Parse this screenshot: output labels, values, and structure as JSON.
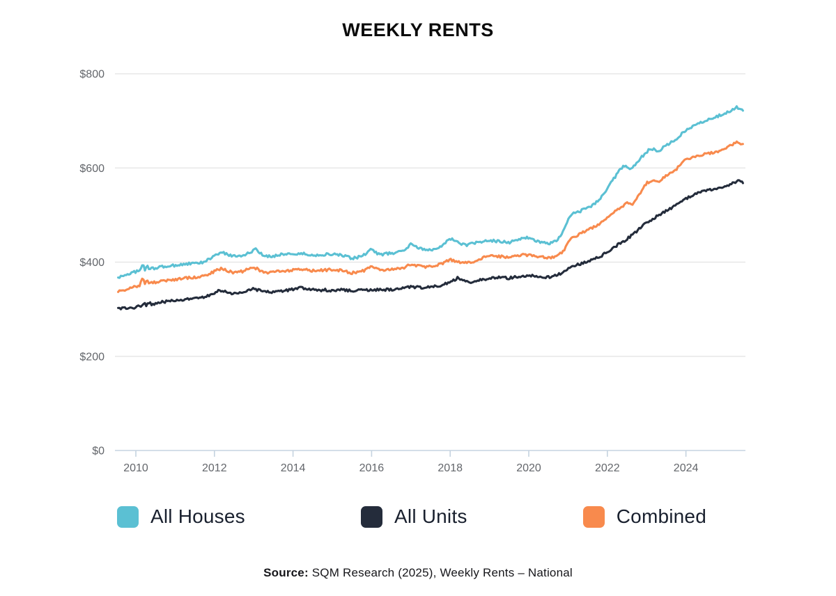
{
  "title": "WEEKLY RENTS",
  "source": {
    "label": "Source:",
    "text": " SQM Research (2025), Weekly Rents – National"
  },
  "colors": {
    "grid": "#e7e7e7",
    "axis": "#c5d3e0",
    "tick_label": "#63666b",
    "background": "#ffffff",
    "title": "#0b0b0b"
  },
  "chart_data": {
    "type": "line",
    "title": "WEEKLY RENTS",
    "xlabel": "",
    "ylabel": "",
    "grid": true,
    "legend_position": "bottom",
    "x_axis": {
      "range": [
        2009.55,
        2025.45
      ],
      "ticks": [
        {
          "value": 2010,
          "label": "2010"
        },
        {
          "value": 2012,
          "label": "2012"
        },
        {
          "value": 2014,
          "label": "2014"
        },
        {
          "value": 2016,
          "label": "2016"
        },
        {
          "value": 2018,
          "label": "2018"
        },
        {
          "value": 2020,
          "label": "2020"
        },
        {
          "value": 2022,
          "label": "2022"
        },
        {
          "value": 2024,
          "label": "2024"
        }
      ]
    },
    "y_axis": {
      "range": [
        0,
        800
      ],
      "ticks": [
        {
          "value": 0,
          "label": "$0"
        },
        {
          "value": 200,
          "label": "$200"
        },
        {
          "value": 400,
          "label": "$400"
        },
        {
          "value": 600,
          "label": "$600"
        },
        {
          "value": 800,
          "label": "$800"
        }
      ]
    },
    "series": [
      {
        "name": "All Houses",
        "color": "#5bc0d3",
        "points": [
          [
            2009.55,
            367
          ],
          [
            2009.7,
            372
          ],
          [
            2009.85,
            376
          ],
          [
            2010.0,
            380
          ],
          [
            2010.1,
            381
          ],
          [
            2010.18,
            396
          ],
          [
            2010.23,
            383
          ],
          [
            2010.28,
            394
          ],
          [
            2010.34,
            385
          ],
          [
            2010.5,
            388
          ],
          [
            2010.75,
            391
          ],
          [
            2011.0,
            393
          ],
          [
            2011.25,
            396
          ],
          [
            2011.5,
            397
          ],
          [
            2011.75,
            400
          ],
          [
            2012.0,
            414
          ],
          [
            2012.2,
            420
          ],
          [
            2012.35,
            416
          ],
          [
            2012.5,
            413
          ],
          [
            2012.75,
            415
          ],
          [
            2012.9,
            420
          ],
          [
            2013.05,
            427
          ],
          [
            2013.25,
            413
          ],
          [
            2013.45,
            412
          ],
          [
            2013.65,
            416
          ],
          [
            2013.85,
            418
          ],
          [
            2014.0,
            417
          ],
          [
            2014.25,
            418
          ],
          [
            2014.5,
            414
          ],
          [
            2014.75,
            416
          ],
          [
            2015.0,
            417
          ],
          [
            2015.25,
            414
          ],
          [
            2015.5,
            408
          ],
          [
            2015.75,
            412
          ],
          [
            2016.0,
            427
          ],
          [
            2016.2,
            416
          ],
          [
            2016.4,
            418
          ],
          [
            2016.6,
            420
          ],
          [
            2016.8,
            424
          ],
          [
            2017.0,
            438
          ],
          [
            2017.2,
            430
          ],
          [
            2017.4,
            425
          ],
          [
            2017.6,
            428
          ],
          [
            2017.8,
            436
          ],
          [
            2018.0,
            450
          ],
          [
            2018.2,
            442
          ],
          [
            2018.4,
            436
          ],
          [
            2018.6,
            440
          ],
          [
            2018.8,
            443
          ],
          [
            2019.0,
            446
          ],
          [
            2019.25,
            444
          ],
          [
            2019.5,
            442
          ],
          [
            2019.75,
            448
          ],
          [
            2019.9,
            453
          ],
          [
            2020.1,
            447
          ],
          [
            2020.3,
            443
          ],
          [
            2020.5,
            440
          ],
          [
            2020.7,
            444
          ],
          [
            2020.85,
            460
          ],
          [
            2021.0,
            490
          ],
          [
            2021.1,
            502
          ],
          [
            2021.25,
            506
          ],
          [
            2021.4,
            512
          ],
          [
            2021.55,
            517
          ],
          [
            2021.7,
            526
          ],
          [
            2021.85,
            538
          ],
          [
            2022.0,
            557
          ],
          [
            2022.15,
            575
          ],
          [
            2022.3,
            595
          ],
          [
            2022.45,
            606
          ],
          [
            2022.6,
            598
          ],
          [
            2022.75,
            612
          ],
          [
            2023.0,
            634
          ],
          [
            2023.1,
            641
          ],
          [
            2023.3,
            636
          ],
          [
            2023.5,
            648
          ],
          [
            2023.75,
            662
          ],
          [
            2024.0,
            680
          ],
          [
            2024.2,
            690
          ],
          [
            2024.4,
            697
          ],
          [
            2024.6,
            705
          ],
          [
            2024.8,
            710
          ],
          [
            2025.0,
            715
          ],
          [
            2025.15,
            722
          ],
          [
            2025.3,
            729
          ],
          [
            2025.45,
            724
          ]
        ]
      },
      {
        "name": "All Units",
        "color": "#242c3b",
        "points": [
          [
            2009.55,
            300
          ],
          [
            2009.7,
            302
          ],
          [
            2009.85,
            301
          ],
          [
            2010.0,
            305
          ],
          [
            2010.15,
            306
          ],
          [
            2010.2,
            313
          ],
          [
            2010.28,
            308
          ],
          [
            2010.33,
            314
          ],
          [
            2010.4,
            310
          ],
          [
            2010.5,
            313
          ],
          [
            2010.75,
            316
          ],
          [
            2011.0,
            318
          ],
          [
            2011.25,
            320
          ],
          [
            2011.5,
            323
          ],
          [
            2011.75,
            326
          ],
          [
            2012.0,
            335
          ],
          [
            2012.15,
            340
          ],
          [
            2012.3,
            336
          ],
          [
            2012.5,
            333
          ],
          [
            2012.75,
            336
          ],
          [
            2013.0,
            344
          ],
          [
            2013.2,
            338
          ],
          [
            2013.4,
            336
          ],
          [
            2013.6,
            338
          ],
          [
            2013.8,
            340
          ],
          [
            2014.0,
            342
          ],
          [
            2014.2,
            345
          ],
          [
            2014.4,
            342
          ],
          [
            2014.6,
            340
          ],
          [
            2014.8,
            341
          ],
          [
            2015.0,
            340
          ],
          [
            2015.25,
            342
          ],
          [
            2015.5,
            339
          ],
          [
            2015.75,
            341
          ],
          [
            2016.0,
            340
          ],
          [
            2016.25,
            342
          ],
          [
            2016.5,
            341
          ],
          [
            2016.75,
            344
          ],
          [
            2017.0,
            348
          ],
          [
            2017.25,
            346
          ],
          [
            2017.5,
            348
          ],
          [
            2017.75,
            351
          ],
          [
            2018.0,
            357
          ],
          [
            2018.2,
            367
          ],
          [
            2018.35,
            361
          ],
          [
            2018.5,
            357
          ],
          [
            2018.75,
            362
          ],
          [
            2019.0,
            365
          ],
          [
            2019.25,
            369
          ],
          [
            2019.5,
            366
          ],
          [
            2019.75,
            370
          ],
          [
            2020.0,
            372
          ],
          [
            2020.25,
            370
          ],
          [
            2020.5,
            368
          ],
          [
            2020.75,
            373
          ],
          [
            2021.0,
            385
          ],
          [
            2021.25,
            395
          ],
          [
            2021.5,
            401
          ],
          [
            2021.75,
            409
          ],
          [
            2022.0,
            421
          ],
          [
            2022.25,
            436
          ],
          [
            2022.5,
            449
          ],
          [
            2022.75,
            466
          ],
          [
            2023.0,
            484
          ],
          [
            2023.25,
            497
          ],
          [
            2023.5,
            509
          ],
          [
            2023.75,
            521
          ],
          [
            2024.0,
            535
          ],
          [
            2024.25,
            545
          ],
          [
            2024.5,
            551
          ],
          [
            2024.75,
            556
          ],
          [
            2025.0,
            560
          ],
          [
            2025.2,
            569
          ],
          [
            2025.35,
            573
          ],
          [
            2025.45,
            568
          ]
        ]
      },
      {
        "name": "Combined",
        "color": "#f88a4d",
        "points": [
          [
            2009.55,
            338
          ],
          [
            2009.7,
            341
          ],
          [
            2009.85,
            344
          ],
          [
            2010.0,
            348
          ],
          [
            2010.1,
            350
          ],
          [
            2010.18,
            368
          ],
          [
            2010.23,
            353
          ],
          [
            2010.28,
            366
          ],
          [
            2010.34,
            355
          ],
          [
            2010.5,
            357
          ],
          [
            2010.75,
            360
          ],
          [
            2011.0,
            363
          ],
          [
            2011.25,
            366
          ],
          [
            2011.5,
            368
          ],
          [
            2011.75,
            371
          ],
          [
            2012.0,
            380
          ],
          [
            2012.15,
            386
          ],
          [
            2012.3,
            383
          ],
          [
            2012.5,
            378
          ],
          [
            2012.75,
            381
          ],
          [
            2013.0,
            390
          ],
          [
            2013.2,
            380
          ],
          [
            2013.4,
            378
          ],
          [
            2013.6,
            380
          ],
          [
            2013.8,
            382
          ],
          [
            2014.0,
            383
          ],
          [
            2014.25,
            385
          ],
          [
            2014.5,
            382
          ],
          [
            2014.75,
            383
          ],
          [
            2015.0,
            384
          ],
          [
            2015.25,
            382
          ],
          [
            2015.5,
            377
          ],
          [
            2015.75,
            380
          ],
          [
            2016.0,
            390
          ],
          [
            2016.2,
            383
          ],
          [
            2016.4,
            384
          ],
          [
            2016.6,
            385
          ],
          [
            2016.8,
            387
          ],
          [
            2017.0,
            396
          ],
          [
            2017.2,
            392
          ],
          [
            2017.4,
            390
          ],
          [
            2017.6,
            392
          ],
          [
            2017.8,
            397
          ],
          [
            2018.0,
            405
          ],
          [
            2018.2,
            401
          ],
          [
            2018.4,
            398
          ],
          [
            2018.6,
            402
          ],
          [
            2018.8,
            408
          ],
          [
            2019.0,
            414
          ],
          [
            2019.25,
            412
          ],
          [
            2019.5,
            410
          ],
          [
            2019.75,
            414
          ],
          [
            2019.9,
            416
          ],
          [
            2020.1,
            413
          ],
          [
            2020.3,
            411
          ],
          [
            2020.5,
            409
          ],
          [
            2020.7,
            412
          ],
          [
            2020.85,
            420
          ],
          [
            2021.0,
            440
          ],
          [
            2021.1,
            452
          ],
          [
            2021.25,
            458
          ],
          [
            2021.5,
            468
          ],
          [
            2021.75,
            479
          ],
          [
            2022.0,
            495
          ],
          [
            2022.25,
            511
          ],
          [
            2022.5,
            526
          ],
          [
            2022.62,
            522
          ],
          [
            2022.75,
            536
          ],
          [
            2023.0,
            568
          ],
          [
            2023.15,
            572
          ],
          [
            2023.3,
            570
          ],
          [
            2023.5,
            584
          ],
          [
            2023.75,
            597
          ],
          [
            2024.0,
            618
          ],
          [
            2024.25,
            625
          ],
          [
            2024.5,
            630
          ],
          [
            2024.75,
            634
          ],
          [
            2025.0,
            640
          ],
          [
            2025.15,
            648
          ],
          [
            2025.3,
            656
          ],
          [
            2025.45,
            651
          ]
        ]
      }
    ]
  }
}
